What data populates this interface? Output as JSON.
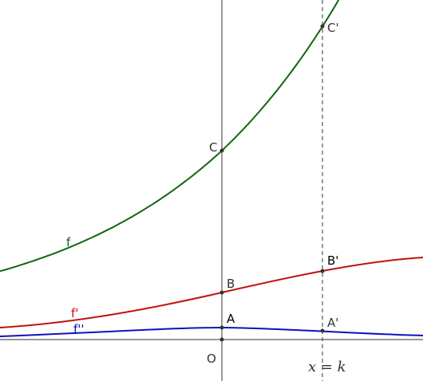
{
  "curves": {
    "f": "f",
    "f_prime": "f'",
    "f_second": "f''"
  },
  "points": {
    "C": "C",
    "C_prime": "C'",
    "B": "B",
    "B_prime": "B'",
    "A": "A",
    "A_prime": "A'",
    "O": "O"
  },
  "line_label": "x = k"
}
